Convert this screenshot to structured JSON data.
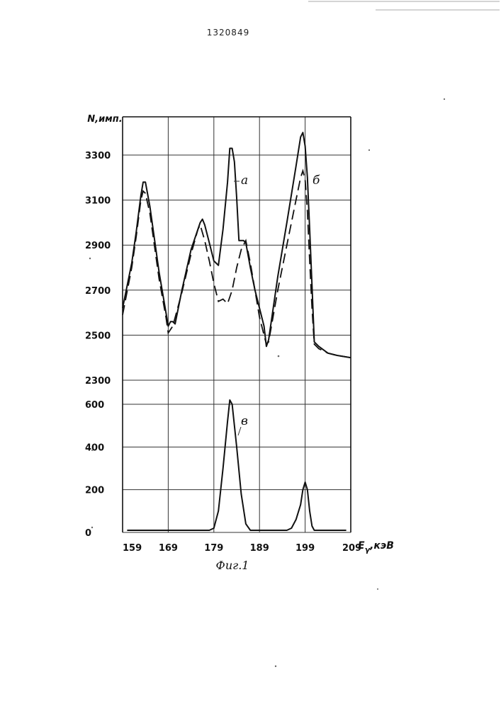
{
  "header": {
    "patent_number": "1320849"
  },
  "chart_data": {
    "type": "line",
    "ylabel": "N,имп.",
    "xlabel": "E",
    "xlabel_sub": "γ",
    "xlabel_unit": ",кэВ",
    "caption": "Фиг.1",
    "x_ticks": [
      159,
      169,
      179,
      189,
      199,
      209
    ],
    "xlim": [
      159,
      209
    ],
    "panels": [
      {
        "id": "upper",
        "ylim": [
          2300,
          3500
        ],
        "y_ticks": [
          2300,
          2500,
          2700,
          2900,
          3100,
          3300
        ],
        "series": [
          {
            "name": "а",
            "style": "solid",
            "points": [
              [
                159,
                2620
              ],
              [
                161,
                2820
              ],
              [
                162,
                2960
              ],
              [
                163,
                3120
              ],
              [
                163.5,
                3180
              ],
              [
                164,
                3180
              ],
              [
                165,
                3070
              ],
              [
                167,
                2780
              ],
              [
                168.5,
                2600
              ],
              [
                169,
                2540
              ],
              [
                169.5,
                2560
              ],
              [
                170,
                2560
              ],
              [
                170.5,
                2550
              ],
              [
                172,
                2700
              ],
              [
                174,
                2880
              ],
              [
                176,
                3000
              ],
              [
                176.5,
                3015
              ],
              [
                177,
                2990
              ],
              [
                178,
                2910
              ],
              [
                179,
                2830
              ],
              [
                179.5,
                2820
              ],
              [
                180,
                2810
              ],
              [
                181,
                2970
              ],
              [
                182,
                3180
              ],
              [
                182.5,
                3330
              ],
              [
                183,
                3330
              ],
              [
                183.5,
                3270
              ],
              [
                184,
                3110
              ],
              [
                184.5,
                2920
              ],
              [
                185.5,
                2920
              ],
              [
                186,
                2910
              ],
              [
                187,
                2800
              ],
              [
                188,
                2700
              ],
              [
                190,
                2540
              ],
              [
                190.5,
                2450
              ],
              [
                191,
                2480
              ],
              [
                193,
                2760
              ],
              [
                195,
                3000
              ],
              [
                197,
                3250
              ],
              [
                198,
                3380
              ],
              [
                198.5,
                3400
              ],
              [
                199,
                3340
              ],
              [
                199.5,
                3200
              ],
              [
                200,
                2970
              ],
              [
                200.5,
                2720
              ],
              [
                201,
                2470
              ],
              [
                202,
                2450
              ],
              [
                204,
                2420
              ],
              [
                206,
                2410
              ],
              [
                209,
                2400
              ]
            ]
          },
          {
            "name": "б",
            "style": "dashed",
            "points": [
              [
                159,
                2590
              ],
              [
                161,
                2800
              ],
              [
                162,
                2940
              ],
              [
                163,
                3100
              ],
              [
                163.5,
                3140
              ],
              [
                164,
                3130
              ],
              [
                165,
                3040
              ],
              [
                167,
                2750
              ],
              [
                168.5,
                2580
              ],
              [
                169,
                2510
              ],
              [
                170,
                2540
              ],
              [
                172,
                2690
              ],
              [
                174,
                2860
              ],
              [
                175.5,
                2970
              ],
              [
                176,
                2990
              ],
              [
                177,
                2920
              ],
              [
                178,
                2830
              ],
              [
                179,
                2730
              ],
              [
                180,
                2650
              ],
              [
                181,
                2660
              ],
              [
                182,
                2640
              ],
              [
                183,
                2700
              ],
              [
                184,
                2800
              ],
              [
                185,
                2880
              ],
              [
                186,
                2920
              ],
              [
                187,
                2820
              ],
              [
                188,
                2700
              ],
              [
                189,
                2580
              ],
              [
                190,
                2500
              ],
              [
                190.5,
                2460
              ],
              [
                191,
                2470
              ],
              [
                193,
                2700
              ],
              [
                195,
                2900
              ],
              [
                197,
                3100
              ],
              [
                198,
                3200
              ],
              [
                198.5,
                3230
              ],
              [
                199,
                3190
              ],
              [
                199.5,
                3050
              ],
              [
                200,
                2830
              ],
              [
                200.5,
                2620
              ],
              [
                201,
                2460
              ],
              [
                202,
                2440
              ],
              [
                204,
                2420
              ],
              [
                206,
                2410
              ],
              [
                209,
                2400
              ]
            ]
          }
        ]
      },
      {
        "id": "lower",
        "ylim": [
          0,
          700
        ],
        "y_ticks": [
          0,
          200,
          400,
          600
        ],
        "series": [
          {
            "name": "в",
            "style": "solid",
            "points": [
              [
                160,
                10
              ],
              [
                169,
                10
              ],
              [
                178,
                10
              ],
              [
                179,
                20
              ],
              [
                180,
                100
              ],
              [
                181,
                300
              ],
              [
                182,
                520
              ],
              [
                182.5,
                620
              ],
              [
                183,
                600
              ],
              [
                184,
                400
              ],
              [
                185,
                180
              ],
              [
                186,
                40
              ],
              [
                187,
                10
              ],
              [
                190,
                10
              ],
              [
                195,
                10
              ],
              [
                196,
                20
              ],
              [
                197,
                60
              ],
              [
                198,
                130
              ],
              [
                198.5,
                200
              ],
              [
                199,
                235
              ],
              [
                199.5,
                200
              ],
              [
                200,
                100
              ],
              [
                200.5,
                30
              ],
              [
                201,
                10
              ],
              [
                205,
                10
              ],
              [
                208,
                10
              ]
            ]
          }
        ]
      }
    ]
  }
}
